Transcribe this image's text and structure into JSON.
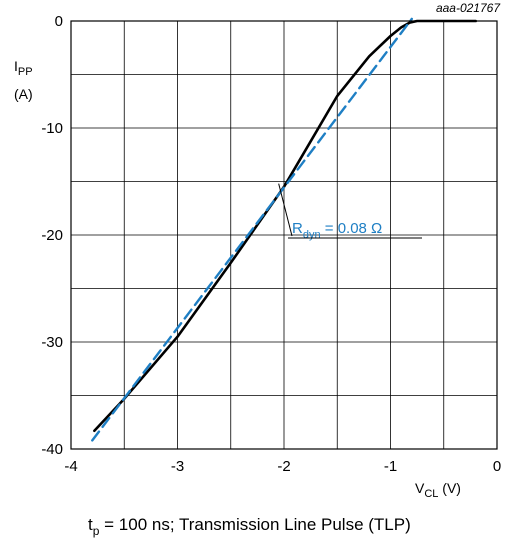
{
  "chart_data": {
    "type": "line",
    "figure_code": "aaa-021767",
    "ylabel": {
      "main": "I",
      "sub": "PP",
      "unit": "(A)"
    },
    "xlabel": {
      "main": "V",
      "sub": "CL",
      "unit": " (V)"
    },
    "xlim": [
      -4,
      0
    ],
    "ylim": [
      -40,
      0
    ],
    "x_ticks": [
      -4,
      -3,
      -2,
      -1,
      0
    ],
    "x_tick_labels": [
      "-4",
      "-3",
      "-2",
      "-1",
      "0"
    ],
    "y_ticks": [
      0,
      -10,
      -20,
      -30,
      -40
    ],
    "y_tick_labels": [
      "0",
      "-10",
      "-20",
      "-30",
      "-40"
    ],
    "grid": true,
    "series": [
      {
        "color": "#000000",
        "style": "solid",
        "x": [
          -3.78,
          -3.5,
          -3.0,
          -2.5,
          -2.0,
          -1.5,
          -1.2,
          -1.0,
          -0.9,
          -0.82,
          -0.75,
          -0.7,
          -0.6,
          -0.4,
          -0.2
        ],
        "y": [
          -38.3,
          -35.3,
          -29.5,
          -22.6,
          -15.5,
          -7.0,
          -3.3,
          -1.4,
          -0.6,
          -0.15,
          0,
          0,
          0,
          0,
          0
        ]
      },
      {
        "color": "#1f7fc4",
        "style": "dashed",
        "x": [
          -3.8,
          -0.8
        ],
        "y": [
          -39.2,
          0.2
        ]
      }
    ],
    "annotation": {
      "main": "R",
      "sub": "dyn",
      "rest": " = 0.08 Ω",
      "color": "#1f7fc4",
      "leader_from": [
        -2.05,
        -15.2
      ]
    },
    "caption": {
      "t": "t",
      "sub": "p",
      "rest": " = 100 ns; Transmission Line Pulse (TLP)"
    }
  }
}
